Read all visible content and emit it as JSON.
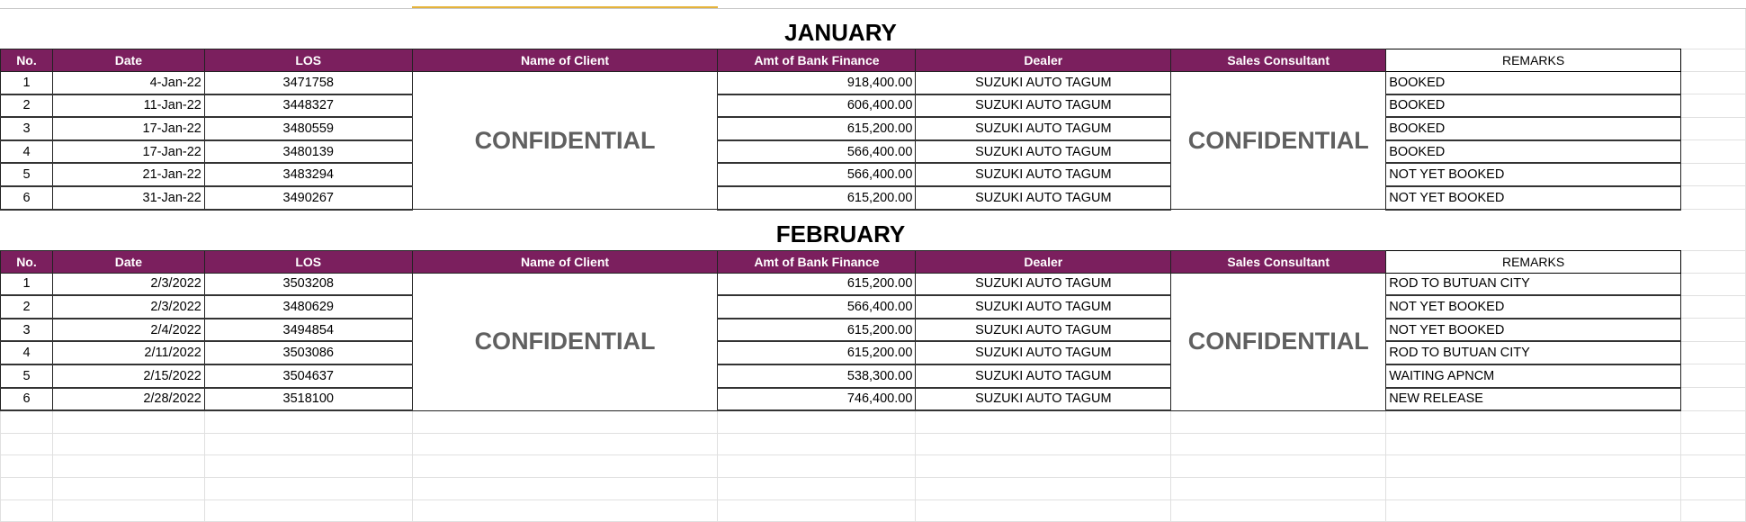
{
  "colors": {
    "header_bg": "#7b1f5e",
    "header_text": "#ffffff",
    "confidential_text": "#606060"
  },
  "columns": [
    "No.",
    "Date",
    "LOS",
    "Name of Client",
    "Amt of Bank Finance",
    "Dealer",
    "Sales Consultant",
    "REMARKS"
  ],
  "confidential_label": "CONFIDENTIAL",
  "sections": [
    {
      "title": "JANUARY",
      "rows": [
        {
          "no": "1",
          "date": "4-Jan-22",
          "los": "3471758",
          "amount": "918,400.00",
          "dealer": "SUZUKI AUTO TAGUM",
          "remarks": "BOOKED"
        },
        {
          "no": "2",
          "date": "11-Jan-22",
          "los": "3448327",
          "amount": "606,400.00",
          "dealer": "SUZUKI AUTO TAGUM",
          "remarks": "BOOKED"
        },
        {
          "no": "3",
          "date": "17-Jan-22",
          "los": "3480559",
          "amount": "615,200.00",
          "dealer": "SUZUKI AUTO TAGUM",
          "remarks": "BOOKED"
        },
        {
          "no": "4",
          "date": "17-Jan-22",
          "los": "3480139",
          "amount": "566,400.00",
          "dealer": "SUZUKI AUTO TAGUM",
          "remarks": "BOOKED"
        },
        {
          "no": "5",
          "date": "21-Jan-22",
          "los": "3483294",
          "amount": "566,400.00",
          "dealer": "SUZUKI AUTO TAGUM",
          "remarks": "NOT YET BOOKED"
        },
        {
          "no": "6",
          "date": "31-Jan-22",
          "los": "3490267",
          "amount": "615,200.00",
          "dealer": "SUZUKI AUTO TAGUM",
          "remarks": "NOT YET BOOKED"
        }
      ]
    },
    {
      "title": "FEBRUARY",
      "rows": [
        {
          "no": "1",
          "date": "2/3/2022",
          "los": "3503208",
          "amount": "615,200.00",
          "dealer": "SUZUKI AUTO TAGUM",
          "remarks": "ROD TO BUTUAN CITY"
        },
        {
          "no": "2",
          "date": "2/3/2022",
          "los": "3480629",
          "amount": "566,400.00",
          "dealer": "SUZUKI AUTO TAGUM",
          "remarks": "NOT YET BOOKED"
        },
        {
          "no": "3",
          "date": "2/4/2022",
          "los": "3494854",
          "amount": "615,200.00",
          "dealer": "SUZUKI AUTO TAGUM",
          "remarks": "NOT YET BOOKED"
        },
        {
          "no": "4",
          "date": "2/11/2022",
          "los": "3503086",
          "amount": "615,200.00",
          "dealer": "SUZUKI AUTO TAGUM",
          "remarks": "ROD TO BUTUAN CITY"
        },
        {
          "no": "5",
          "date": "2/15/2022",
          "los": "3504637",
          "amount": "538,300.00",
          "dealer": "SUZUKI AUTO TAGUM",
          "remarks": "WAITING APNCM"
        },
        {
          "no": "6",
          "date": "2/28/2022",
          "los": "3518100",
          "amount": "746,400.00",
          "dealer": "SUZUKI AUTO TAGUM",
          "remarks": "NEW RELEASE"
        }
      ]
    }
  ]
}
